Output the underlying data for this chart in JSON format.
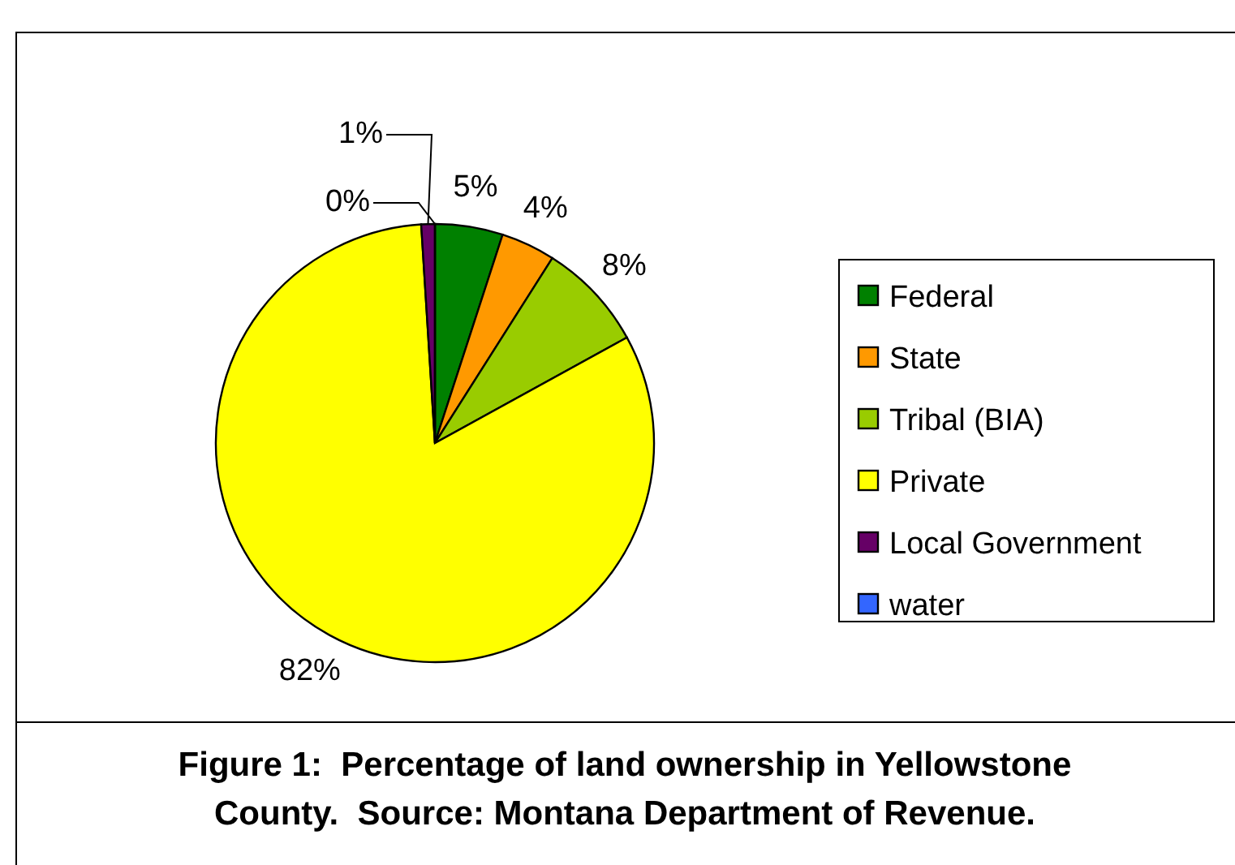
{
  "chart_data": {
    "type": "pie",
    "title": "Figure 1:  Percentage of land ownership in Yellowstone County.  Source: Montana Department of Revenue.",
    "categories": [
      "Federal",
      "State",
      "Tribal (BIA)",
      "Private",
      "Local Government",
      "water"
    ],
    "values": [
      5,
      4,
      8,
      82,
      1,
      0
    ],
    "value_labels": [
      "5%",
      "4%",
      "8%",
      "82%",
      "1%",
      "0%"
    ],
    "colors": [
      "#008000",
      "#ff9900",
      "#99cc00",
      "#ffff00",
      "#660066",
      "#3366ff"
    ],
    "legend": "right"
  }
}
